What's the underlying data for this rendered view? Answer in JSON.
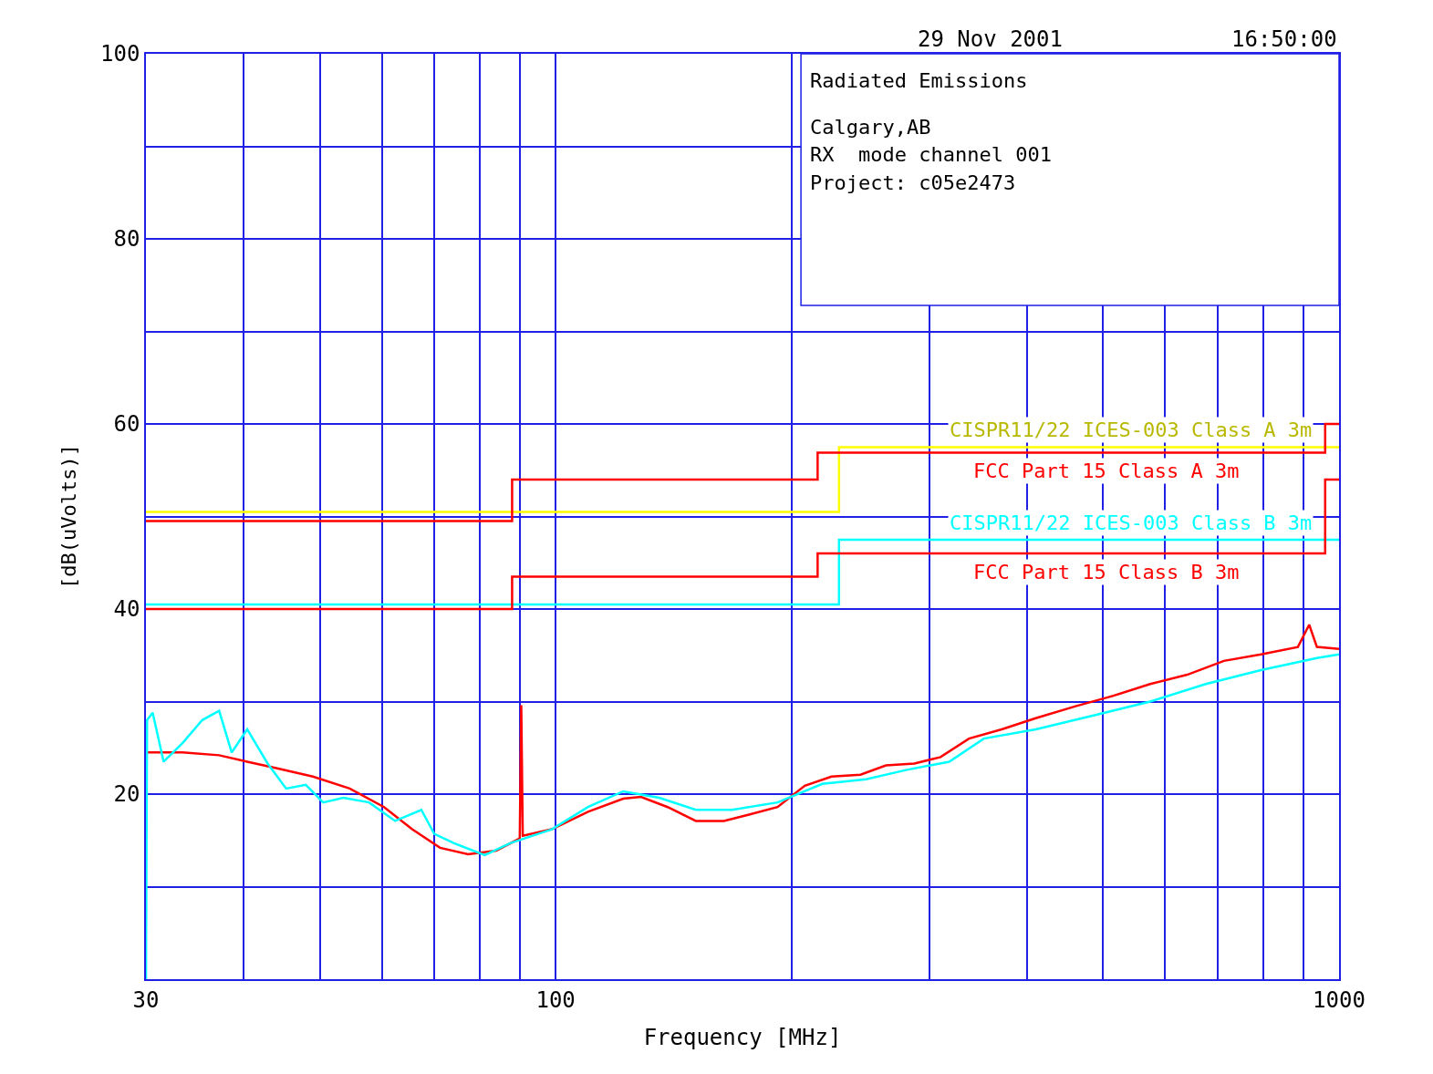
{
  "chart_data": {
    "type": "line",
    "xlabel": "Frequency [MHz]",
    "ylabel": "[dB(uVolts)]",
    "log": "x",
    "grid": true,
    "legend": false,
    "marker": "none",
    "xlim": [
      30,
      1000
    ],
    "ylim": [
      0,
      100
    ],
    "xticks": [
      30,
      {
        "value": 40,
        "label": null
      },
      {
        "value": 50,
        "label": null
      },
      {
        "value": 60,
        "label": null
      },
      {
        "value": 70,
        "label": null
      },
      {
        "value": 80,
        "label": null
      },
      {
        "value": 90,
        "label": null
      },
      100,
      {
        "value": 200,
        "label": null
      },
      {
        "value": 300,
        "label": null
      },
      {
        "value": 400,
        "label": null
      },
      {
        "value": 500,
        "label": null
      },
      {
        "value": 600,
        "label": null
      },
      {
        "value": 700,
        "label": null
      },
      {
        "value": 800,
        "label": null
      },
      {
        "value": 900,
        "label": null
      },
      1000
    ],
    "yticks": [
      {
        "value": 0,
        "label": null
      },
      {
        "value": 10,
        "label": null
      },
      20,
      {
        "value": 30,
        "label": null
      },
      40,
      {
        "value": 50,
        "label": null
      },
      60,
      {
        "value": 70,
        "label": null
      },
      80,
      {
        "value": 90,
        "label": null
      },
      100
    ],
    "annotations": [
      "29 Nov 2001",
      "16:50:00",
      "Radiated Emissions",
      "Calgary,AB",
      "RX  mode channel 001",
      "Project: c05e2473"
    ],
    "series": [
      {
        "type": "step",
        "name": "CISPR11/22 ICES-003 Class A 3m",
        "color": "#ffff00",
        "x": [
          30,
          230,
          1000
        ],
        "values": [
          50.5,
          57.5,
          57.5
        ]
      },
      {
        "type": "step",
        "name": "FCC Part 15 Class A 3m",
        "color": "#ff0000",
        "x": [
          30,
          88,
          216,
          960,
          1000
        ],
        "values": [
          49.5,
          54,
          56.9,
          60,
          60
        ]
      },
      {
        "type": "step",
        "name": "CISPR11/22 ICES-003 Class B 3m",
        "color": "#00ffff",
        "x": [
          30,
          230,
          1000
        ],
        "values": [
          40.5,
          47.5,
          47.5
        ]
      },
      {
        "type": "step",
        "name": "FCC Part 15 Class B 3m",
        "color": "#ff0000",
        "x": [
          30,
          88,
          216,
          960,
          1000
        ],
        "values": [
          40,
          43.5,
          46,
          54,
          54
        ]
      },
      {
        "type": "line",
        "color": "#ff0000",
        "x": [
          30,
          33.4,
          37.2,
          40.4,
          44,
          49,
          54.6,
          60.4,
          65.6,
          71.2,
          77.3,
          84,
          90,
          90.4,
          90.8,
          98.9,
          110,
          122,
          128.5,
          139,
          151,
          164,
          177,
          192,
          208,
          225,
          245,
          264,
          287,
          310,
          337,
          371,
          410,
          461,
          514,
          574,
          640,
          713,
          795,
          886,
          916,
          937,
          1000
        ],
        "values": [
          24.5,
          24.5,
          24.2,
          23.5,
          22.8,
          21.9,
          20.6,
          18.6,
          16.2,
          14.2,
          13.5,
          13.9,
          15.2,
          29.6,
          15.5,
          16.2,
          18.1,
          19.5,
          19.7,
          18.6,
          17.1,
          17.1,
          17.8,
          18.6,
          20.9,
          21.9,
          22.1,
          23.1,
          23.3,
          24,
          26,
          27,
          28.2,
          29.5,
          30.6,
          31.9,
          32.9,
          34.4,
          35.1,
          35.9,
          38.3,
          35.9,
          35.7
        ]
      },
      {
        "type": "line",
        "color": "#00ffff",
        "x": [
          30,
          30.1,
          30.6,
          31.6,
          33.4,
          35.4,
          37.2,
          38.6,
          40.4,
          42.9,
          45.3,
          48,
          50.5,
          53.6,
          57.8,
          62.4,
          67.4,
          70,
          74.2,
          81.2,
          87.5,
          98.9,
          110,
          122,
          135.6,
          151,
          168,
          192,
          219,
          249,
          280,
          318,
          352,
          410,
          486,
          574,
          676,
          795,
          937,
          1000
        ],
        "values": [
          0,
          28,
          28.8,
          23.5,
          25.5,
          28,
          29,
          24.5,
          27,
          23.3,
          20.6,
          21,
          19.1,
          19.6,
          19.1,
          17.1,
          18.3,
          15.7,
          14.7,
          13.4,
          14.7,
          16.2,
          18.6,
          20.3,
          19.6,
          18.3,
          18.3,
          19.1,
          21.1,
          21.6,
          22.6,
          23.5,
          26,
          27,
          28.5,
          30,
          31.9,
          33.4,
          34.7,
          35.1
        ]
      }
    ]
  }
}
